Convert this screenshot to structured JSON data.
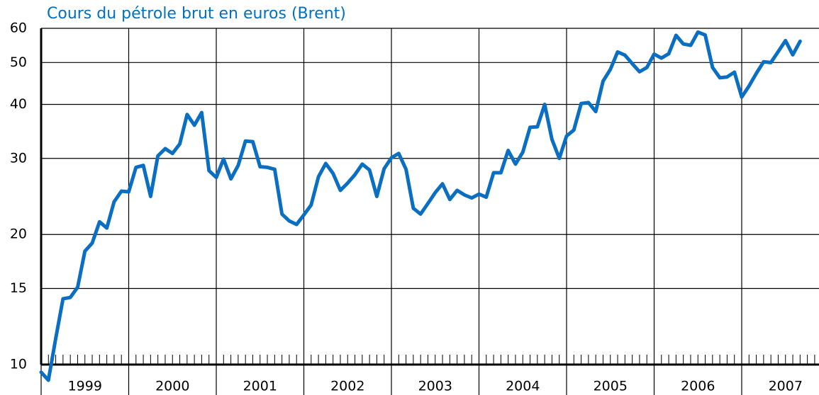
{
  "chart_data": {
    "type": "line",
    "title": "Cours du pétrole brut en euros (Brent)",
    "log_scale_y": true,
    "grid": true,
    "color": "#0a6fc2",
    "xlim": [
      1999,
      2008
    ],
    "xticks": [
      1999,
      2000,
      2001,
      2002,
      2003,
      2004,
      2005,
      2006,
      2007,
      2008
    ],
    "year_labels": [
      "1999",
      "2000",
      "2001",
      "2002",
      "2003",
      "2004",
      "2005",
      "2006",
      "2007"
    ],
    "ylim": [
      10,
      60
    ],
    "yticks": [
      10,
      15,
      20,
      30,
      40,
      50,
      60
    ],
    "x": [
      1999,
      1999.083,
      1999.167,
      1999.25,
      1999.333,
      1999.417,
      1999.5,
      1999.583,
      1999.667,
      1999.75,
      1999.833,
      1999.917,
      2000,
      2000.083,
      2000.167,
      2000.25,
      2000.333,
      2000.417,
      2000.5,
      2000.583,
      2000.667,
      2000.75,
      2000.833,
      2000.917,
      2001,
      2001.083,
      2001.167,
      2001.25,
      2001.333,
      2001.417,
      2001.5,
      2001.583,
      2001.667,
      2001.75,
      2001.833,
      2001.917,
      2002,
      2002.083,
      2002.167,
      2002.25,
      2002.333,
      2002.417,
      2002.5,
      2002.583,
      2002.667,
      2002.75,
      2002.833,
      2002.917,
      2003,
      2003.083,
      2003.167,
      2003.25,
      2003.333,
      2003.417,
      2003.5,
      2003.583,
      2003.667,
      2003.75,
      2003.833,
      2003.917,
      2004,
      2004.083,
      2004.167,
      2004.25,
      2004.333,
      2004.417,
      2004.5,
      2004.583,
      2004.667,
      2004.75,
      2004.833,
      2004.917,
      2005,
      2005.083,
      2005.167,
      2005.25,
      2005.333,
      2005.417,
      2005.5,
      2005.583,
      2005.667,
      2005.75,
      2005.833,
      2005.917,
      2006,
      2006.083,
      2006.167,
      2006.25,
      2006.333,
      2006.417,
      2006.5,
      2006.583,
      2006.667,
      2006.75,
      2006.833,
      2006.917,
      2007,
      2007.083,
      2007.167,
      2007.25,
      2007.333,
      2007.417,
      2007.5,
      2007.583,
      2007.667
    ],
    "values": [
      9.6,
      9.2,
      11.5,
      14.2,
      14.3,
      15.1,
      18.3,
      19.1,
      21.4,
      20.7,
      23.8,
      25.2,
      25.1,
      28.6,
      28.9,
      24.5,
      30.4,
      31.6,
      30.8,
      32.4,
      37.9,
      35.8,
      38.3,
      28.1,
      27.1,
      29.9,
      26.9,
      28.9,
      32.9,
      32.8,
      28.7,
      28.6,
      28.3,
      22.3,
      21.5,
      21.1,
      22.2,
      23.4,
      27.2,
      29.2,
      27.7,
      25.3,
      26.3,
      27.5,
      29.1,
      28.2,
      24.5,
      28.4,
      30.1,
      30.8,
      28.3,
      23.0,
      22.3,
      23.6,
      25.0,
      26.2,
      24.1,
      25.3,
      24.7,
      24.3,
      24.8,
      24.4,
      27.8,
      27.8,
      31.3,
      29.1,
      31.0,
      35.4,
      35.5,
      40.0,
      33.2,
      30.0,
      33.8,
      34.9,
      40.2,
      40.4,
      38.5,
      45.3,
      48.2,
      52.9,
      52.0,
      49.7,
      47.6,
      48.7,
      52.3,
      51.2,
      52.4,
      57.8,
      55.2,
      54.8,
      58.8,
      57.9,
      48.7,
      46.1,
      46.3,
      47.5,
      41.6,
      44.1,
      47.2,
      50.2,
      50.0,
      53.0,
      56.2,
      52.1,
      56.0
    ]
  }
}
